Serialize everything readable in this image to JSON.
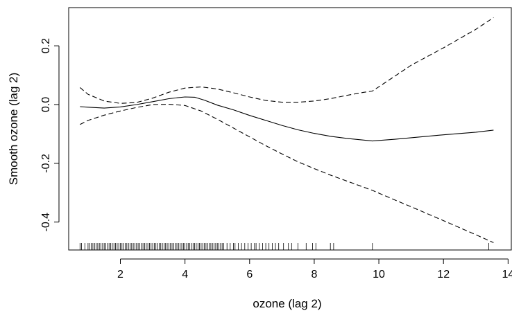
{
  "chart_data": {
    "type": "line",
    "title": "",
    "xlabel": "ozone (lag 2)",
    "ylabel": "Smooth ozone (lag 2)",
    "xlim": [
      0.4,
      14.1
    ],
    "ylim": [
      -0.495,
      0.33
    ],
    "xticks": [
      2,
      4,
      6,
      8,
      10,
      12,
      14
    ],
    "yticks": [
      -0.4,
      -0.2,
      0.0,
      0.2
    ],
    "ytick_labels": [
      "-0.4",
      "-0.2",
      "0.0",
      "0.2"
    ],
    "series": [
      {
        "style": "solid",
        "x": [
          0.75,
          1.0,
          1.5,
          2.0,
          2.5,
          3.0,
          3.5,
          4.0,
          4.3,
          4.6,
          5.0,
          5.5,
          6.0,
          6.5,
          7.0,
          7.5,
          8.0,
          8.5,
          9.0,
          9.8,
          10.5,
          11.0,
          12.0,
          13.0,
          13.55
        ],
        "y": [
          -0.007,
          -0.009,
          -0.012,
          -0.008,
          0.0,
          0.01,
          0.02,
          0.026,
          0.025,
          0.015,
          -0.002,
          -0.018,
          -0.037,
          -0.054,
          -0.071,
          -0.086,
          -0.098,
          -0.108,
          -0.115,
          -0.124,
          -0.118,
          -0.113,
          -0.103,
          -0.094,
          -0.087
        ]
      },
      {
        "style": "dashed",
        "x": [
          0.75,
          1.0,
          1.5,
          2.0,
          2.5,
          3.0,
          3.5,
          4.0,
          4.5,
          5.0,
          5.5,
          6.0,
          6.5,
          7.0,
          7.5,
          8.0,
          8.5,
          9.0,
          9.5,
          9.8,
          10.5,
          11.0,
          12.0,
          13.0,
          13.55
        ],
        "y": [
          0.058,
          0.035,
          0.012,
          0.004,
          0.007,
          0.022,
          0.042,
          0.056,
          0.06,
          0.053,
          0.04,
          0.026,
          0.014,
          0.008,
          0.008,
          0.012,
          0.02,
          0.031,
          0.041,
          0.046,
          0.097,
          0.134,
          0.193,
          0.256,
          0.296
        ]
      },
      {
        "style": "dashed",
        "x": [
          0.75,
          1.0,
          1.5,
          2.0,
          2.5,
          3.0,
          3.5,
          4.0,
          4.5,
          5.0,
          5.5,
          6.0,
          6.5,
          7.0,
          7.5,
          8.0,
          8.5,
          9.0,
          9.8,
          10.5,
          11.0,
          12.0,
          13.0,
          13.55
        ],
        "y": [
          -0.068,
          -0.054,
          -0.036,
          -0.022,
          -0.01,
          0.0,
          0.001,
          -0.003,
          -0.022,
          -0.05,
          -0.08,
          -0.11,
          -0.14,
          -0.168,
          -0.195,
          -0.218,
          -0.24,
          -0.26,
          -0.292,
          -0.325,
          -0.348,
          -0.395,
          -0.443,
          -0.47
        ]
      }
    ],
    "rug": [
      0.75,
      0.8,
      0.9,
      1.0,
      1.05,
      1.1,
      1.15,
      1.2,
      1.25,
      1.3,
      1.35,
      1.4,
      1.45,
      1.5,
      1.55,
      1.6,
      1.65,
      1.7,
      1.75,
      1.8,
      1.85,
      1.9,
      1.95,
      2.0,
      2.05,
      2.1,
      2.15,
      2.2,
      2.25,
      2.3,
      2.35,
      2.4,
      2.45,
      2.5,
      2.55,
      2.6,
      2.65,
      2.7,
      2.75,
      2.8,
      2.85,
      2.9,
      2.95,
      3.0,
      3.05,
      3.1,
      3.15,
      3.2,
      3.25,
      3.3,
      3.35,
      3.4,
      3.45,
      3.5,
      3.55,
      3.6,
      3.65,
      3.7,
      3.75,
      3.8,
      3.85,
      3.9,
      3.95,
      4.0,
      4.05,
      4.1,
      4.15,
      4.2,
      4.25,
      4.3,
      4.35,
      4.4,
      4.45,
      4.5,
      4.55,
      4.6,
      4.65,
      4.7,
      4.75,
      4.8,
      4.85,
      4.9,
      4.95,
      5.0,
      5.05,
      5.1,
      5.15,
      5.2,
      5.3,
      5.4,
      5.5,
      5.55,
      5.65,
      5.75,
      5.85,
      5.95,
      6.05,
      6.15,
      6.2,
      6.3,
      6.4,
      6.5,
      6.6,
      6.7,
      6.8,
      6.9,
      7.05,
      7.2,
      7.3,
      7.5,
      7.75,
      7.95,
      8.05,
      8.5,
      8.6,
      9.8,
      13.4
    ]
  }
}
